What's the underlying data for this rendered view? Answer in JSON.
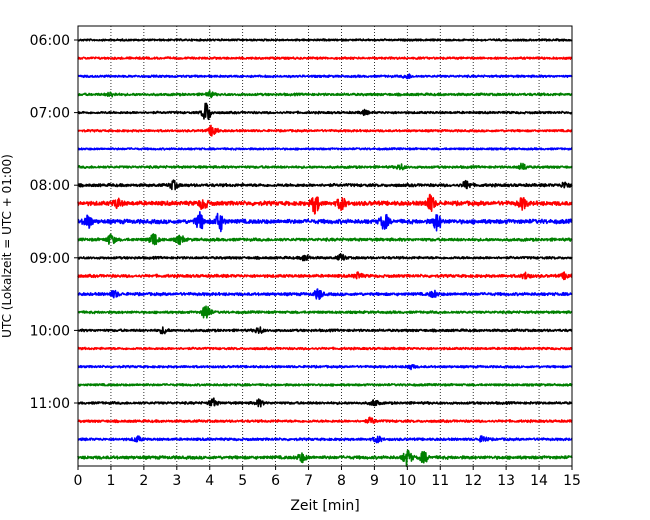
{
  "chart_data": {
    "type": "line",
    "title": "",
    "xlabel": "Zeit  [min]",
    "ylabel": "UTC (Lokalzeit = UTC + 01:00)",
    "xlim": [
      0,
      15
    ],
    "x_ticks": [
      0,
      1,
      2,
      3,
      4,
      5,
      6,
      7,
      8,
      9,
      10,
      11,
      12,
      13,
      14,
      15
    ],
    "y_ticks": [
      "06:00",
      "07:00",
      "08:00",
      "09:00",
      "10:00",
      "11:00"
    ],
    "grid": "vertical dotted",
    "trace_colors": [
      "#000000",
      "#ff0000",
      "#0000ff",
      "#008000"
    ],
    "traces": [
      {
        "time": "06:00",
        "color": "#000000",
        "amp": 0.8,
        "events": []
      },
      {
        "time": "06:15",
        "color": "#ff0000",
        "amp": 0.9,
        "events": []
      },
      {
        "time": "06:30",
        "color": "#0000ff",
        "amp": 0.9,
        "events": [
          {
            "t": 10.0,
            "a": 2
          }
        ]
      },
      {
        "time": "06:45",
        "color": "#008000",
        "amp": 1.0,
        "events": [
          {
            "t": 1.0,
            "a": 2
          },
          {
            "t": 4.0,
            "a": 2.5
          }
        ]
      },
      {
        "time": "07:00",
        "color": "#000000",
        "amp": 0.9,
        "events": [
          {
            "t": 3.9,
            "a": 10
          },
          {
            "t": 8.7,
            "a": 2
          }
        ]
      },
      {
        "time": "07:15",
        "color": "#ff0000",
        "amp": 0.9,
        "events": [
          {
            "t": 4.1,
            "a": 6
          }
        ]
      },
      {
        "time": "07:30",
        "color": "#0000ff",
        "amp": 0.8,
        "events": []
      },
      {
        "time": "07:45",
        "color": "#008000",
        "amp": 1.0,
        "events": [
          {
            "t": 9.8,
            "a": 2.5
          },
          {
            "t": 13.5,
            "a": 3
          }
        ]
      },
      {
        "time": "08:00",
        "color": "#000000",
        "amp": 1.2,
        "events": [
          {
            "t": 2.9,
            "a": 4
          },
          {
            "t": 11.8,
            "a": 4
          },
          {
            "t": 14.8,
            "a": 3
          }
        ]
      },
      {
        "time": "08:15",
        "color": "#ff0000",
        "amp": 1.8,
        "events": [
          {
            "t": 1.2,
            "a": 4
          },
          {
            "t": 3.8,
            "a": 5
          },
          {
            "t": 7.2,
            "a": 9
          },
          {
            "t": 8.0,
            "a": 6
          },
          {
            "t": 10.7,
            "a": 8
          },
          {
            "t": 13.5,
            "a": 5
          }
        ]
      },
      {
        "time": "08:30",
        "color": "#0000ff",
        "amp": 1.8,
        "events": [
          {
            "t": 0.3,
            "a": 6
          },
          {
            "t": 3.7,
            "a": 8
          },
          {
            "t": 4.3,
            "a": 9
          },
          {
            "t": 9.3,
            "a": 7
          },
          {
            "t": 10.9,
            "a": 8
          }
        ]
      },
      {
        "time": "08:45",
        "color": "#008000",
        "amp": 1.2,
        "events": [
          {
            "t": 1.0,
            "a": 5
          },
          {
            "t": 2.3,
            "a": 6
          },
          {
            "t": 3.1,
            "a": 4
          }
        ]
      },
      {
        "time": "09:00",
        "color": "#000000",
        "amp": 1.0,
        "events": [
          {
            "t": 6.9,
            "a": 3
          },
          {
            "t": 8.0,
            "a": 3
          }
        ]
      },
      {
        "time": "09:15",
        "color": "#ff0000",
        "amp": 1.2,
        "events": [
          {
            "t": 8.5,
            "a": 3
          },
          {
            "t": 13.6,
            "a": 3
          },
          {
            "t": 14.8,
            "a": 3
          }
        ]
      },
      {
        "time": "09:30",
        "color": "#0000ff",
        "amp": 1.2,
        "events": [
          {
            "t": 7.3,
            "a": 5
          },
          {
            "t": 10.8,
            "a": 3
          },
          {
            "t": 1.1,
            "a": 3
          }
        ]
      },
      {
        "time": "09:45",
        "color": "#008000",
        "amp": 1.0,
        "events": [
          {
            "t": 3.9,
            "a": 8
          }
        ]
      },
      {
        "time": "10:00",
        "color": "#000000",
        "amp": 1.0,
        "events": [
          {
            "t": 2.6,
            "a": 3
          },
          {
            "t": 5.5,
            "a": 3
          }
        ]
      },
      {
        "time": "10:15",
        "color": "#ff0000",
        "amp": 0.9,
        "events": []
      },
      {
        "time": "10:30",
        "color": "#0000ff",
        "amp": 0.9,
        "events": [
          {
            "t": 10.1,
            "a": 2
          }
        ]
      },
      {
        "time": "10:45",
        "color": "#008000",
        "amp": 0.9,
        "events": []
      },
      {
        "time": "11:00",
        "color": "#000000",
        "amp": 1.0,
        "events": [
          {
            "t": 4.1,
            "a": 4
          },
          {
            "t": 5.5,
            "a": 3
          },
          {
            "t": 9.0,
            "a": 3
          }
        ]
      },
      {
        "time": "11:15",
        "color": "#ff0000",
        "amp": 1.0,
        "events": [
          {
            "t": 8.9,
            "a": 3
          }
        ]
      },
      {
        "time": "11:30",
        "color": "#0000ff",
        "amp": 1.0,
        "events": [
          {
            "t": 1.8,
            "a": 2.5
          },
          {
            "t": 9.1,
            "a": 3
          },
          {
            "t": 12.3,
            "a": 3
          }
        ]
      },
      {
        "time": "11:45",
        "color": "#008000",
        "amp": 1.3,
        "events": [
          {
            "t": 6.8,
            "a": 4
          },
          {
            "t": 10.0,
            "a": 8
          },
          {
            "t": 10.5,
            "a": 5
          }
        ]
      }
    ]
  }
}
